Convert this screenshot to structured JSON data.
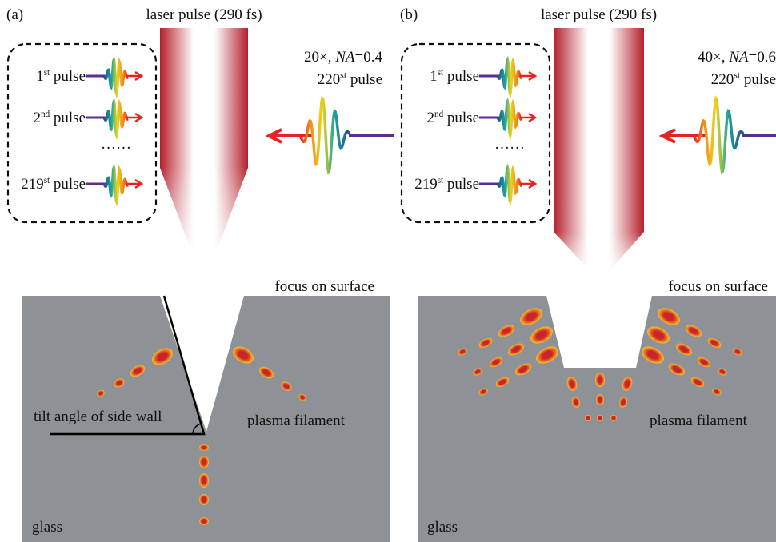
{
  "panels": [
    {
      "label": "(a)",
      "laser": "laser pulse (290 fs)",
      "pulses": [
        {
          "num": "1",
          "sup": "st",
          "rest": " pulse"
        },
        {
          "num": "2",
          "sup": "nd",
          "rest": " pulse"
        },
        {
          "num": "219",
          "sup": "st",
          "rest": " pulse"
        }
      ],
      "ellipsis": "……",
      "objective": {
        "mag": "20×, ",
        "na": "NA",
        "value": "=0.4"
      },
      "current": {
        "num": "220",
        "sup": "st",
        "rest": " pulse"
      },
      "focus": "focus on surface",
      "tilt": "tilt angle of side wall",
      "filament": "plasma filament",
      "material": "glass"
    },
    {
      "label": "(b)",
      "laser": "laser pulse (290 fs)",
      "pulses": [
        {
          "num": "1",
          "sup": "st",
          "rest": " pulse"
        },
        {
          "num": "2",
          "sup": "nd",
          "rest": " pulse"
        },
        {
          "num": "219",
          "sup": "st",
          "rest": " pulse"
        }
      ],
      "ellipsis": "……",
      "objective": {
        "mag": "40×, ",
        "na": "NA",
        "value": "=0.6"
      },
      "current": {
        "num": "220",
        "sup": "st",
        "rest": " pulse"
      },
      "focus": "focus on surface",
      "filament": "plasma filament",
      "material": "glass"
    }
  ]
}
